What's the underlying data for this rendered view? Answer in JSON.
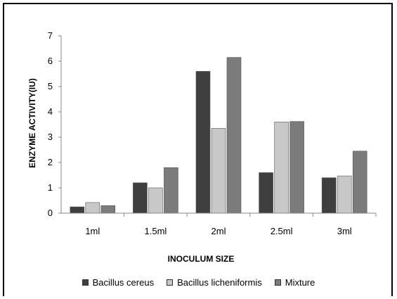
{
  "chart_data": {
    "type": "bar",
    "categories": [
      "1ml",
      "1.5ml",
      "2ml",
      "2.5ml",
      "3ml"
    ],
    "series": [
      {
        "name": "Bacillus cereus",
        "values": [
          0.25,
          1.2,
          5.6,
          1.6,
          1.4
        ],
        "color": "#3f3f3f"
      },
      {
        "name": "Bacillus licheniformis",
        "values": [
          0.42,
          1.0,
          3.35,
          3.6,
          1.47
        ],
        "color": "#c8c8c8"
      },
      {
        "name": "Mixture",
        "values": [
          0.3,
          1.8,
          6.15,
          3.62,
          2.45
        ],
        "color": "#7b7b7b"
      }
    ],
    "xlabel": "INOCULUM SIZE",
    "ylabel": "ENZYME ACTIVITY(IU)",
    "ylim": [
      0,
      7
    ],
    "yticks": [
      0,
      1,
      2,
      3,
      4,
      5,
      6,
      7
    ],
    "grid": false,
    "legend_position": "bottom"
  }
}
